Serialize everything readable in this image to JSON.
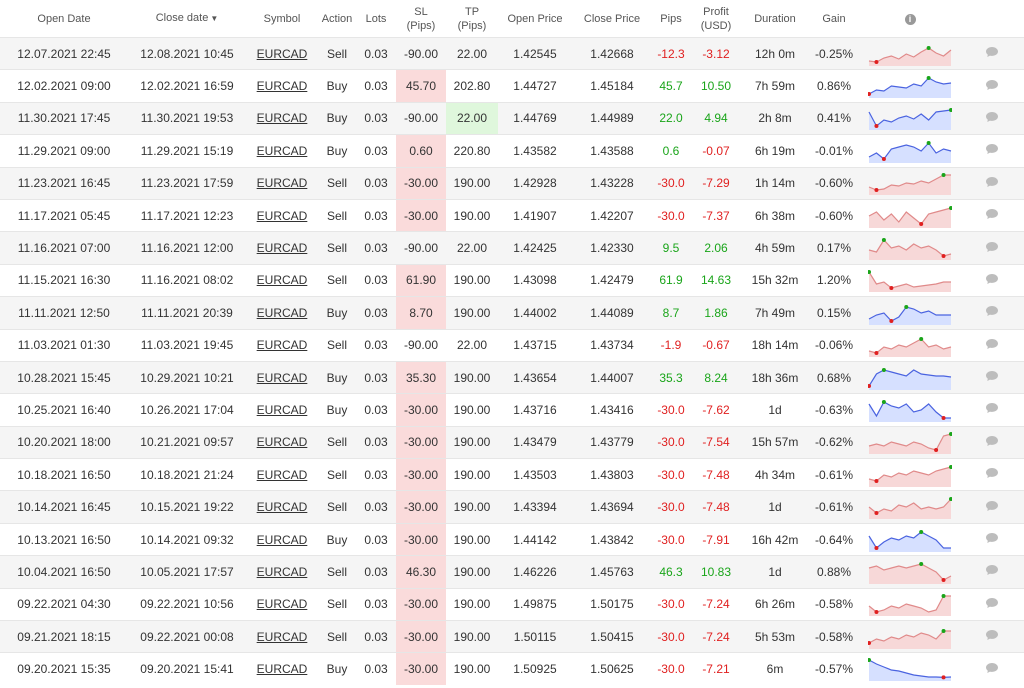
{
  "headers": {
    "open_date": "Open Date",
    "close_date": "Close date",
    "close_date_sort": "▼",
    "symbol": "Symbol",
    "action": "Action",
    "lots": "Lots",
    "sl_l1": "SL",
    "sl_l2": "(Pips)",
    "tp_l1": "TP",
    "tp_l2": "(Pips)",
    "open_price": "Open Price",
    "close_price": "Close Price",
    "pips": "Pips",
    "profit_l1": "Profit",
    "profit_l2": "(USD)",
    "duration": "Duration",
    "gain": "Gain",
    "info_icon": "i"
  },
  "colors": {
    "positive": "#1aa51a",
    "negative": "#e02020",
    "sl_highlight": "#fadbdb",
    "tp_highlight": "#dff7dc",
    "spark_blue_fill": "#d6e0ff",
    "spark_blue_line": "#4a63e0",
    "spark_red_fill": "#f7d8d8",
    "spark_red_line": "#e08a8a"
  },
  "rows": [
    {
      "open": "12.07.2021 22:45",
      "close": "12.08.2021 10:45",
      "symbol": "EURCAD",
      "action": "Sell",
      "lots": "0.03",
      "sl": "-90.00",
      "tp": "22.00",
      "open_price": "1.42545",
      "close_price": "1.42668",
      "pips": "-12.3",
      "profit": "-3.12",
      "duration": "12h 0m",
      "gain": "-0.25%"
    },
    {
      "open": "12.02.2021 09:00",
      "close": "12.02.2021 16:59",
      "symbol": "EURCAD",
      "action": "Buy",
      "lots": "0.03",
      "sl": "45.70",
      "tp": "202.80",
      "open_price": "1.44727",
      "close_price": "1.45184",
      "pips": "45.7",
      "profit": "10.50",
      "duration": "7h 59m",
      "gain": "0.86%"
    },
    {
      "open": "11.30.2021 17:45",
      "close": "11.30.2021 19:53",
      "symbol": "EURCAD",
      "action": "Buy",
      "lots": "0.03",
      "sl": "-90.00",
      "tp": "22.00",
      "open_price": "1.44769",
      "close_price": "1.44989",
      "pips": "22.0",
      "profit": "4.94",
      "duration": "2h 8m",
      "gain": "0.41%"
    },
    {
      "open": "11.29.2021 09:00",
      "close": "11.29.2021 15:19",
      "symbol": "EURCAD",
      "action": "Buy",
      "lots": "0.03",
      "sl": "0.60",
      "tp": "220.80",
      "open_price": "1.43582",
      "close_price": "1.43588",
      "pips": "0.6",
      "profit": "-0.07",
      "duration": "6h 19m",
      "gain": "-0.01%"
    },
    {
      "open": "11.23.2021 16:45",
      "close": "11.23.2021 17:59",
      "symbol": "EURCAD",
      "action": "Sell",
      "lots": "0.03",
      "sl": "-30.00",
      "tp": "190.00",
      "open_price": "1.42928",
      "close_price": "1.43228",
      "pips": "-30.0",
      "profit": "-7.29",
      "duration": "1h 14m",
      "gain": "-0.60%"
    },
    {
      "open": "11.17.2021 05:45",
      "close": "11.17.2021 12:23",
      "symbol": "EURCAD",
      "action": "Sell",
      "lots": "0.03",
      "sl": "-30.00",
      "tp": "190.00",
      "open_price": "1.41907",
      "close_price": "1.42207",
      "pips": "-30.0",
      "profit": "-7.37",
      "duration": "6h 38m",
      "gain": "-0.60%"
    },
    {
      "open": "11.16.2021 07:00",
      "close": "11.16.2021 12:00",
      "symbol": "EURCAD",
      "action": "Sell",
      "lots": "0.03",
      "sl": "-90.00",
      "tp": "22.00",
      "open_price": "1.42425",
      "close_price": "1.42330",
      "pips": "9.5",
      "profit": "2.06",
      "duration": "4h 59m",
      "gain": "0.17%"
    },
    {
      "open": "11.15.2021 16:30",
      "close": "11.16.2021 08:02",
      "symbol": "EURCAD",
      "action": "Sell",
      "lots": "0.03",
      "sl": "61.90",
      "tp": "190.00",
      "open_price": "1.43098",
      "close_price": "1.42479",
      "pips": "61.9",
      "profit": "14.63",
      "duration": "15h 32m",
      "gain": "1.20%"
    },
    {
      "open": "11.11.2021 12:50",
      "close": "11.11.2021 20:39",
      "symbol": "EURCAD",
      "action": "Buy",
      "lots": "0.03",
      "sl": "8.70",
      "tp": "190.00",
      "open_price": "1.44002",
      "close_price": "1.44089",
      "pips": "8.7",
      "profit": "1.86",
      "duration": "7h 49m",
      "gain": "0.15%"
    },
    {
      "open": "11.03.2021 01:30",
      "close": "11.03.2021 19:45",
      "symbol": "EURCAD",
      "action": "Sell",
      "lots": "0.03",
      "sl": "-90.00",
      "tp": "22.00",
      "open_price": "1.43715",
      "close_price": "1.43734",
      "pips": "-1.9",
      "profit": "-0.67",
      "duration": "18h 14m",
      "gain": "-0.06%"
    },
    {
      "open": "10.28.2021 15:45",
      "close": "10.29.2021 10:21",
      "symbol": "EURCAD",
      "action": "Buy",
      "lots": "0.03",
      "sl": "35.30",
      "tp": "190.00",
      "open_price": "1.43654",
      "close_price": "1.44007",
      "pips": "35.3",
      "profit": "8.24",
      "duration": "18h 36m",
      "gain": "0.68%"
    },
    {
      "open": "10.25.2021 16:40",
      "close": "10.26.2021 17:04",
      "symbol": "EURCAD",
      "action": "Buy",
      "lots": "0.03",
      "sl": "-30.00",
      "tp": "190.00",
      "open_price": "1.43716",
      "close_price": "1.43416",
      "pips": "-30.0",
      "profit": "-7.62",
      "duration": "1d",
      "gain": "-0.63%"
    },
    {
      "open": "10.20.2021 18:00",
      "close": "10.21.2021 09:57",
      "symbol": "EURCAD",
      "action": "Sell",
      "lots": "0.03",
      "sl": "-30.00",
      "tp": "190.00",
      "open_price": "1.43479",
      "close_price": "1.43779",
      "pips": "-30.0",
      "profit": "-7.54",
      "duration": "15h 57m",
      "gain": "-0.62%"
    },
    {
      "open": "10.18.2021 16:50",
      "close": "10.18.2021 21:24",
      "symbol": "EURCAD",
      "action": "Sell",
      "lots": "0.03",
      "sl": "-30.00",
      "tp": "190.00",
      "open_price": "1.43503",
      "close_price": "1.43803",
      "pips": "-30.0",
      "profit": "-7.48",
      "duration": "4h 34m",
      "gain": "-0.61%"
    },
    {
      "open": "10.14.2021 16:45",
      "close": "10.15.2021 19:22",
      "symbol": "EURCAD",
      "action": "Sell",
      "lots": "0.03",
      "sl": "-30.00",
      "tp": "190.00",
      "open_price": "1.43394",
      "close_price": "1.43694",
      "pips": "-30.0",
      "profit": "-7.48",
      "duration": "1d",
      "gain": "-0.61%"
    },
    {
      "open": "10.13.2021 16:50",
      "close": "10.14.2021 09:32",
      "symbol": "EURCAD",
      "action": "Buy",
      "lots": "0.03",
      "sl": "-30.00",
      "tp": "190.00",
      "open_price": "1.44142",
      "close_price": "1.43842",
      "pips": "-30.0",
      "profit": "-7.91",
      "duration": "16h 42m",
      "gain": "-0.64%"
    },
    {
      "open": "10.04.2021 16:50",
      "close": "10.05.2021 17:57",
      "symbol": "EURCAD",
      "action": "Sell",
      "lots": "0.03",
      "sl": "46.30",
      "tp": "190.00",
      "open_price": "1.46226",
      "close_price": "1.45763",
      "pips": "46.3",
      "profit": "10.83",
      "duration": "1d",
      "gain": "0.88%"
    },
    {
      "open": "09.22.2021 04:30",
      "close": "09.22.2021 10:56",
      "symbol": "EURCAD",
      "action": "Sell",
      "lots": "0.03",
      "sl": "-30.00",
      "tp": "190.00",
      "open_price": "1.49875",
      "close_price": "1.50175",
      "pips": "-30.0",
      "profit": "-7.24",
      "duration": "6h 26m",
      "gain": "-0.58%"
    },
    {
      "open": "09.21.2021 18:15",
      "close": "09.22.2021 00:08",
      "symbol": "EURCAD",
      "action": "Sell",
      "lots": "0.03",
      "sl": "-30.00",
      "tp": "190.00",
      "open_price": "1.50115",
      "close_price": "1.50415",
      "pips": "-30.0",
      "profit": "-7.24",
      "duration": "5h 53m",
      "gain": "-0.58%"
    },
    {
      "open": "09.20.2021 15:35",
      "close": "09.20.2021 15:41",
      "symbol": "EURCAD",
      "action": "Buy",
      "lots": "0.03",
      "sl": "-30.00",
      "tp": "190.00",
      "open_price": "1.50925",
      "close_price": "1.50625",
      "pips": "-30.0",
      "profit": "-7.21",
      "duration": "6m",
      "gain": "-0.57%"
    }
  ]
}
